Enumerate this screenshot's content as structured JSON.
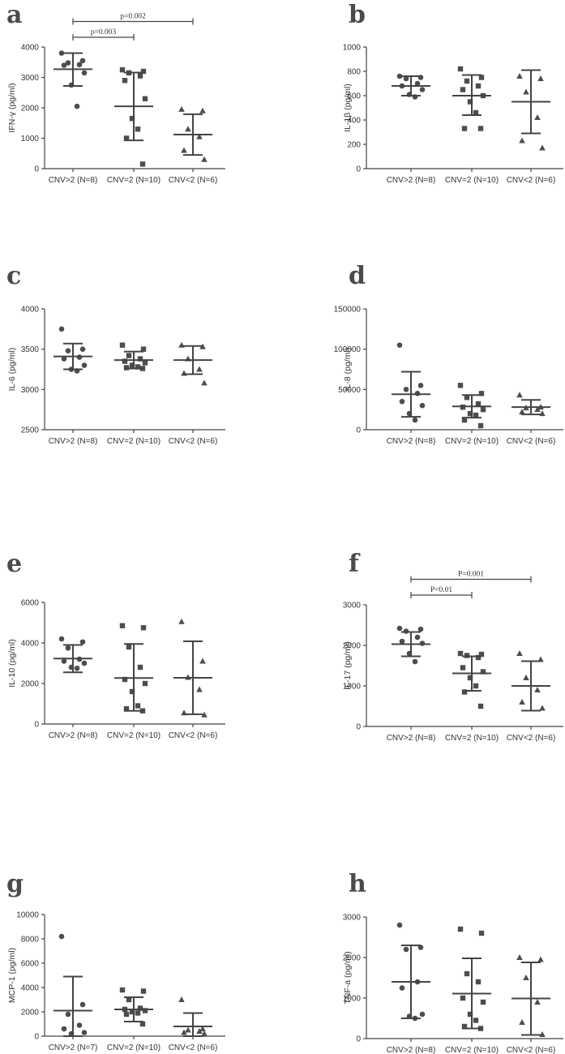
{
  "chart_data": [
    {
      "panel": "a",
      "type": "scatter",
      "ylabel": "IFN-γ (pg/ml)",
      "ylim": [
        0,
        4000
      ],
      "yticks": [
        0,
        1000,
        2000,
        3000,
        4000
      ],
      "ytick_labels": [
        "0",
        "1000",
        "2000",
        "3000",
        "4000"
      ],
      "categories": [
        "CNV>2 (N=8)",
        "CNV=2 (N=10)",
        "CNV<2 (N=6)"
      ],
      "groups": [
        {
          "marker": "circle",
          "values": [
            3800,
            3550,
            3480,
            3420,
            3400,
            3150,
            2750,
            2050
          ],
          "mean": 3270,
          "sd_low": 2720,
          "sd_high": 3800
        },
        {
          "marker": "square",
          "values": [
            3250,
            3200,
            3150,
            3050,
            2900,
            2300,
            1650,
            1300,
            1000,
            150
          ],
          "mean": 2050,
          "sd_low": 930,
          "sd_high": 3160
        },
        {
          "marker": "triangle",
          "values": [
            1950,
            1900,
            1300,
            1050,
            600,
            300
          ],
          "mean": 1120,
          "sd_low": 450,
          "sd_high": 1790
        }
      ],
      "comparisons": [
        {
          "from": 0,
          "to": 1,
          "label": "p=0.003"
        },
        {
          "from": 0,
          "to": 2,
          "label": "p=0.002"
        }
      ]
    },
    {
      "panel": "b",
      "type": "scatter",
      "ylabel": "IL-1β (pg/ml)",
      "ylim": [
        0,
        1000
      ],
      "yticks": [
        0,
        200,
        400,
        600,
        800,
        1000
      ],
      "ytick_labels": [
        "0",
        "200",
        "400",
        "600",
        "800",
        "1000"
      ],
      "categories": [
        "CNV>2 (N=8)",
        "CNV=2 (N=10)",
        "CNV<2 (N=6)"
      ],
      "groups": [
        {
          "marker": "circle",
          "values": [
            760,
            750,
            740,
            700,
            680,
            650,
            610,
            590
          ],
          "mean": 680,
          "sd_low": 600,
          "sd_high": 760
        },
        {
          "marker": "square",
          "values": [
            820,
            750,
            720,
            680,
            650,
            600,
            550,
            460,
            330,
            330
          ],
          "mean": 600,
          "sd_low": 440,
          "sd_high": 770
        },
        {
          "marker": "triangle",
          "values": [
            760,
            740,
            630,
            420,
            230,
            170
          ],
          "mean": 550,
          "sd_low": 290,
          "sd_high": 810
        }
      ],
      "comparisons": []
    },
    {
      "panel": "c",
      "type": "scatter",
      "ylabel": "IL-6 (pg/ml)",
      "ylim": [
        2500,
        4000
      ],
      "yticks": [
        2500,
        3000,
        3500,
        4000
      ],
      "ytick_labels": [
        "2500",
        "3000",
        "3500",
        "4000"
      ],
      "categories": [
        "CNV>2 (N=8)",
        "CNV=2 (N=10)",
        "CNV<2 (N=6)"
      ],
      "groups": [
        {
          "marker": "circle",
          "values": [
            3750,
            3500,
            3480,
            3400,
            3380,
            3300,
            3250,
            3230
          ],
          "mean": 3410,
          "sd_low": 3250,
          "sd_high": 3570
        },
        {
          "marker": "square",
          "values": [
            3550,
            3500,
            3420,
            3380,
            3350,
            3330,
            3300,
            3280,
            3270,
            3260
          ],
          "mean": 3365,
          "sd_low": 3260,
          "sd_high": 3470
        },
        {
          "marker": "triangle",
          "values": [
            3550,
            3530,
            3380,
            3250,
            3200,
            3080
          ],
          "mean": 3365,
          "sd_low": 3190,
          "sd_high": 3540
        }
      ],
      "comparisons": []
    },
    {
      "panel": "d",
      "type": "scatter",
      "ylabel": "IL-8 (pg/ml)",
      "ylim": [
        0,
        150000
      ],
      "yticks": [
        0,
        50000,
        100000,
        150000
      ],
      "ytick_labels": [
        "0",
        "50000",
        "100000",
        "150000"
      ],
      "categories": [
        "CNV>2 (N=8)",
        "CNV=2 (N=10)",
        "CNV<2 (N=6)"
      ],
      "groups": [
        {
          "marker": "circle",
          "values": [
            105000,
            55000,
            50000,
            45000,
            35000,
            30000,
            20000,
            12000
          ],
          "mean": 44000,
          "sd_low": 16000,
          "sd_high": 72000
        },
        {
          "marker": "square",
          "values": [
            55000,
            45000,
            40000,
            32000,
            28000,
            25000,
            20000,
            18000,
            12000,
            5000
          ],
          "mean": 29000,
          "sd_low": 15000,
          "sd_high": 43000
        },
        {
          "marker": "triangle",
          "values": [
            43000,
            28000,
            27000,
            25000,
            22000,
            20000
          ],
          "mean": 28000,
          "sd_low": 19000,
          "sd_high": 37000
        }
      ],
      "comparisons": []
    },
    {
      "panel": "e",
      "type": "scatter",
      "ylabel": "IL-10 (pg/ml)",
      "ylim": [
        0,
        6000
      ],
      "yticks": [
        0,
        2000,
        4000,
        6000
      ],
      "ytick_labels": [
        "0",
        "2000",
        "4000",
        "6000"
      ],
      "categories": [
        "CNV>2 (N=8)",
        "CNV=2 (N=10)",
        "CNV<2 (N=6)"
      ],
      "groups": [
        {
          "marker": "circle",
          "values": [
            4200,
            4050,
            3750,
            3200,
            3100,
            3000,
            2800,
            2750
          ],
          "mean": 3230,
          "sd_low": 2550,
          "sd_high": 3900
        },
        {
          "marker": "square",
          "values": [
            4850,
            4750,
            3800,
            2800,
            2200,
            2000,
            1600,
            900,
            750,
            650
          ],
          "mean": 2270,
          "sd_low": 650,
          "sd_high": 3950
        },
        {
          "marker": "triangle",
          "values": [
            5050,
            3100,
            2300,
            1700,
            550,
            450
          ],
          "mean": 2280,
          "sd_low": 480,
          "sd_high": 4080
        }
      ],
      "comparisons": []
    },
    {
      "panel": "f",
      "type": "scatter",
      "ylabel": "IL-17 (pg/ml)",
      "ylim": [
        0,
        3000
      ],
      "yticks": [
        0,
        1000,
        2000,
        3000
      ],
      "ytick_labels": [
        "0",
        "1000",
        "2000",
        "3000"
      ],
      "categories": [
        "CNV>2 (N=8)",
        "CNV=2 (N=10)",
        "CNV<2 (N=6)"
      ],
      "groups": [
        {
          "marker": "circle",
          "values": [
            2420,
            2400,
            2350,
            2200,
            2100,
            2050,
            1800,
            1600
          ],
          "mean": 2030,
          "sd_low": 1730,
          "sd_high": 2330
        },
        {
          "marker": "square",
          "values": [
            1800,
            1780,
            1750,
            1700,
            1450,
            1350,
            1200,
            1000,
            850,
            500
          ],
          "mean": 1310,
          "sd_low": 880,
          "sd_high": 1730
        },
        {
          "marker": "triangle",
          "values": [
            1800,
            1650,
            1200,
            900,
            600,
            450
          ],
          "mean": 1000,
          "sd_low": 390,
          "sd_high": 1610
        }
      ],
      "comparisons": [
        {
          "from": 0,
          "to": 1,
          "label": "P=0.01"
        },
        {
          "from": 0,
          "to": 2,
          "label": "P=0.001"
        }
      ]
    },
    {
      "panel": "g",
      "type": "scatter",
      "ylabel": "MCP-1 (pg/ml)",
      "ylim": [
        0,
        10000
      ],
      "yticks": [
        0,
        2000,
        4000,
        6000,
        8000,
        10000
      ],
      "ytick_labels": [
        "0",
        "2000",
        "4000",
        "6000",
        "8000",
        "10000"
      ],
      "categories": [
        "CNV>2 (N=7)",
        "CNV=2 (N=10)",
        "CNV<2 (N=6)"
      ],
      "groups": [
        {
          "marker": "circle",
          "values": [
            8200,
            2600,
            1800,
            900,
            600,
            300,
            200
          ],
          "mean": 2100,
          "sd_low": 0,
          "sd_high": 4900
        },
        {
          "marker": "square",
          "values": [
            3800,
            3700,
            3000,
            2300,
            2200,
            2100,
            2000,
            1900,
            1800,
            1000
          ],
          "mean": 2200,
          "sd_low": 1200,
          "sd_high": 3200
        },
        {
          "marker": "triangle",
          "values": [
            3000,
            600,
            500,
            400,
            300,
            200
          ],
          "mean": 800,
          "sd_low": 0,
          "sd_high": 1900
        }
      ],
      "comparisons": []
    },
    {
      "panel": "h",
      "type": "scatter",
      "ylabel": "TNF-a (pg/ml)",
      "ylim": [
        0,
        3000
      ],
      "yticks": [
        0,
        1000,
        2000,
        3000
      ],
      "ytick_labels": [
        "0",
        "1000",
        "2000",
        "3000"
      ],
      "categories": [
        "CNV>2 (N=8)",
        "CNV=2 (N=10)",
        "CNV<2 (N=6)"
      ],
      "groups": [
        {
          "marker": "circle",
          "values": [
            2800,
            2250,
            2200,
            1400,
            1250,
            600,
            550,
            500
          ],
          "mean": 1400,
          "sd_low": 500,
          "sd_high": 2300
        },
        {
          "marker": "square",
          "values": [
            2700,
            2600,
            1600,
            1400,
            1000,
            900,
            600,
            450,
            300,
            250
          ],
          "mean": 1110,
          "sd_low": 250,
          "sd_high": 1980
        },
        {
          "marker": "triangle",
          "values": [
            2000,
            1950,
            1500,
            900,
            400,
            100
          ],
          "mean": 990,
          "sd_low": 90,
          "sd_high": 1880
        }
      ],
      "comparisons": []
    }
  ]
}
